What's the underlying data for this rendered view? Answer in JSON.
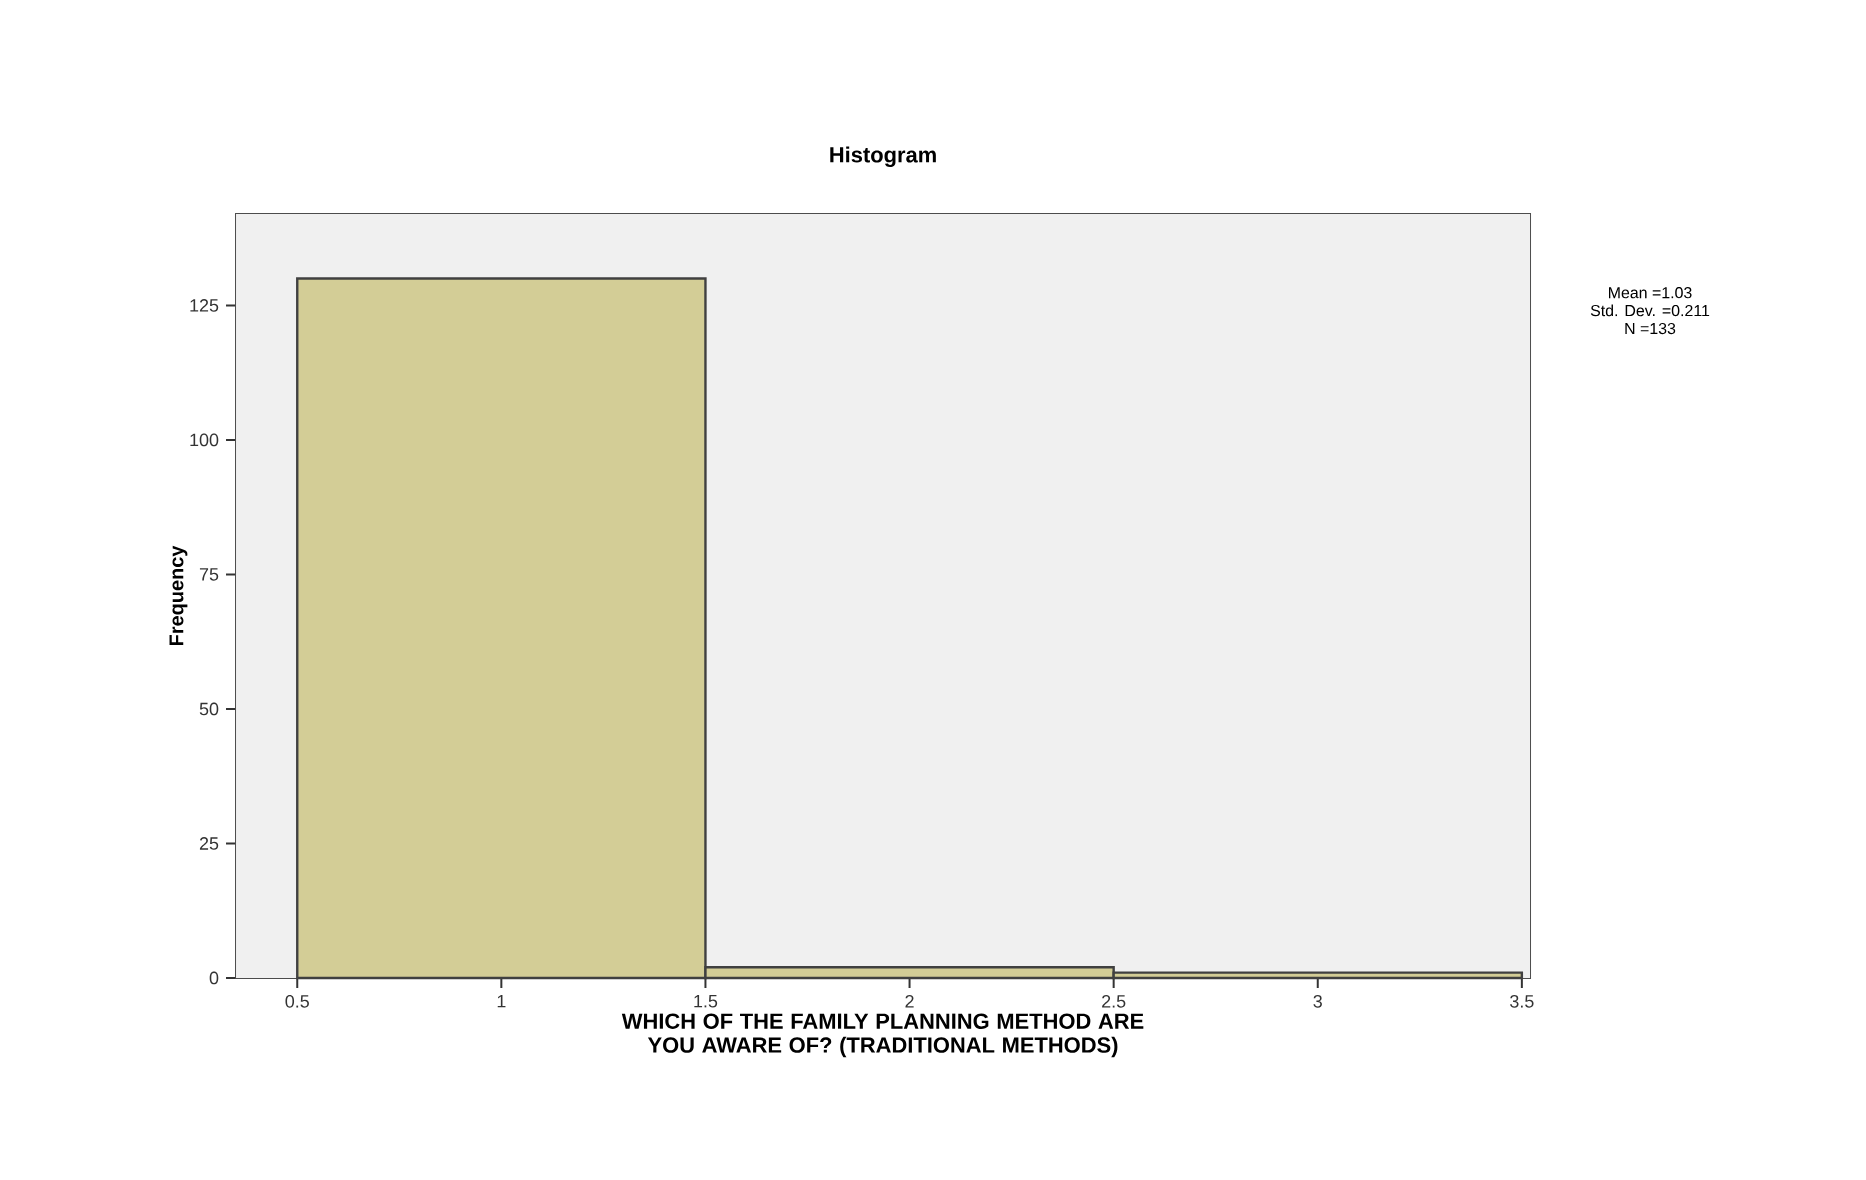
{
  "chart_data": {
    "type": "histogram",
    "title": "Histogram",
    "xlabel": "WHICH OF THE FAMILY PLANNING METHOD ARE YOU AWARE OF? (TRADITIONAL METHODS)",
    "ylabel": "Frequency",
    "bins": [
      0.5,
      1.5,
      2.5,
      3.5
    ],
    "values": [
      130,
      2,
      1
    ],
    "color": "#d3cd96",
    "xlim": [
      0.35,
      3.52
    ],
    "ylim": [
      0,
      142
    ],
    "xticks": [
      0.5,
      1,
      1.5,
      2,
      2.5,
      3,
      3.5
    ],
    "yticks": [
      0,
      25,
      50,
      75,
      100,
      125
    ],
    "annotations": [
      "Mean =1.03",
      "Std. Dev. =0.211",
      "N =133"
    ]
  }
}
